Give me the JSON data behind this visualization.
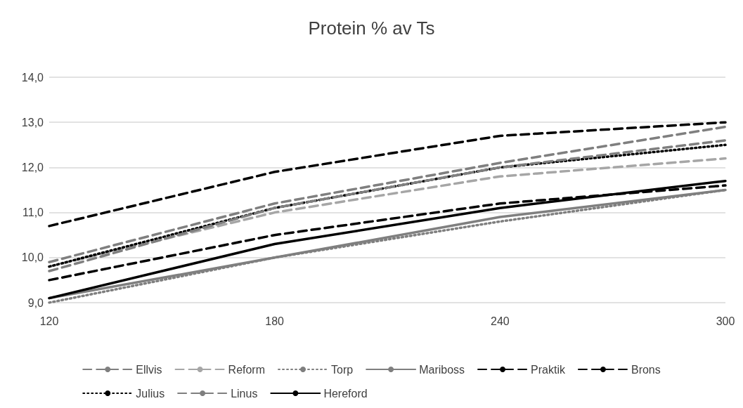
{
  "chart_data": {
    "type": "line",
    "title": "Protein % av Ts",
    "categories": [
      "120",
      "180",
      "240",
      "300"
    ],
    "ylim": [
      9,
      14
    ],
    "yticks": [
      {
        "value": 9,
        "label": "9,0"
      },
      {
        "value": 10,
        "label": "10,0"
      },
      {
        "value": 11,
        "label": "11,0"
      },
      {
        "value": 12,
        "label": "12,0"
      },
      {
        "value": 13,
        "label": "13,0"
      },
      {
        "value": 14,
        "label": "14,0"
      }
    ],
    "grid": "y",
    "legend": "bottom",
    "marker": "none",
    "series": [
      {
        "name": "Ellvis",
        "color": "#7f7f7f",
        "line_style": "dashed",
        "values": [
          9.9,
          11.2,
          12.1,
          12.9
        ]
      },
      {
        "name": "Reform",
        "color": "#a6a6a6",
        "line_style": "dashed",
        "values": [
          9.8,
          11.0,
          11.8,
          12.2
        ]
      },
      {
        "name": "Torp",
        "color": "#7f7f7f",
        "line_style": "dotted",
        "values": [
          9.0,
          10.0,
          10.8,
          11.5
        ]
      },
      {
        "name": "Mariboss",
        "color": "#7f7f7f",
        "line_style": "solid",
        "values": [
          9.1,
          10.0,
          10.9,
          11.5
        ]
      },
      {
        "name": "Praktik",
        "color": "#000000",
        "line_style": "dashed",
        "values": [
          10.7,
          11.9,
          12.7,
          13.0
        ]
      },
      {
        "name": "Brons",
        "color": "#000000",
        "line_style": "dashed",
        "values": [
          9.5,
          10.5,
          11.2,
          11.6
        ]
      },
      {
        "name": "Julius",
        "color": "#000000",
        "line_style": "dotted",
        "values": [
          9.8,
          11.1,
          12.0,
          12.5
        ]
      },
      {
        "name": "Linus",
        "color": "#7f7f7f",
        "line_style": "dashed",
        "values": [
          9.7,
          11.1,
          12.0,
          12.6
        ]
      },
      {
        "name": "Hereford",
        "color": "#000000",
        "line_style": "solid",
        "values": [
          9.1,
          10.3,
          11.1,
          11.7
        ]
      }
    ]
  }
}
